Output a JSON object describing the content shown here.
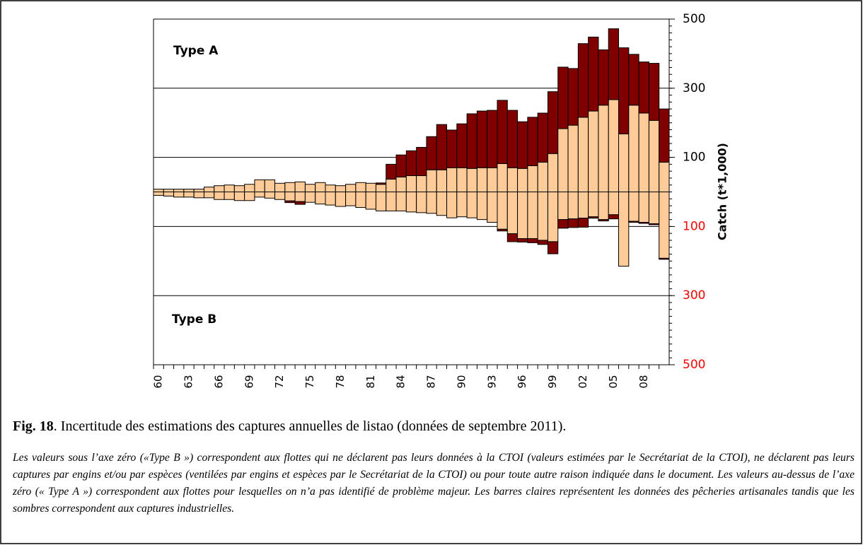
{
  "chart_data": {
    "type": "bar",
    "ylabel": "Catch (t*1,000)",
    "annotations": [
      "Type A",
      "Type B"
    ],
    "caption": {
      "label": "Fig. 18",
      "text": ". Incertitude des estimations des captures annuelles de listao (données de septembre 2011)."
    },
    "note": "Les valeurs sous l’axe zéro («Type B ») correspondent aux flottes qui ne déclarent pas leurs données à la CTOI (valeurs estimées par le Secrétariat de la CTOI), ne déclarent pas leurs captures par engins et/ou par espèces (ventilées par engins et espèces par le Secrétariat de la CTOI) ou pour toute autre raison indiquée dans le document. Les valeurs au-dessus de l’axe zéro (« Type A ») correspondent aux flottes pour lesquelles on n’a pas identifié de problème majeur. Les barres claires représentent les données des pêcheries artisanales tandis que les sombres correspondent aux captures industrielles.",
    "categories": [
      "60",
      null,
      null,
      "63",
      null,
      null,
      "66",
      null,
      null,
      "69",
      null,
      null,
      "72",
      null,
      null,
      "75",
      null,
      null,
      "78",
      null,
      null,
      "81",
      null,
      null,
      "84",
      null,
      null,
      "87",
      null,
      null,
      "90",
      null,
      null,
      "93",
      null,
      null,
      "96",
      null,
      null,
      "99",
      null,
      null,
      "02",
      null,
      null,
      "05",
      null,
      null,
      "08",
      null,
      null
    ],
    "series": [
      {
        "color": "#ffcc99",
        "values": [
          8,
          8,
          8,
          8,
          8,
          14,
          18,
          20,
          18,
          22,
          35,
          35,
          25,
          27,
          29,
          22,
          27,
          20,
          18,
          22,
          27,
          25,
          22,
          37,
          43,
          47,
          47,
          64,
          64,
          70,
          70,
          68,
          70,
          70,
          82,
          70,
          68,
          76,
          86,
          111,
          183,
          193,
          216,
          234,
          251,
          267,
          168,
          251,
          228,
          207,
          86
        ]
      },
      {
        "color": "#800000",
        "values": [
          0,
          0,
          0,
          0,
          0,
          0,
          0,
          0,
          0,
          0,
          0,
          0,
          0,
          0,
          0,
          0,
          0,
          0,
          0,
          0,
          0,
          0,
          4,
          43,
          64,
          72,
          82,
          96,
          131,
          109,
          127,
          158,
          164,
          166,
          183,
          166,
          135,
          140,
          142,
          179,
          178,
          164,
          213,
          214,
          160,
          205,
          249,
          147,
          148,
          165,
          154
        ]
      },
      {
        "color": "#ffcc99",
        "values": [
          -10,
          -12,
          -15,
          -15,
          -17,
          -17,
          -22,
          -22,
          -25,
          -25,
          -15,
          -18,
          -22,
          -26,
          -28,
          -30,
          -35,
          -38,
          -42,
          -40,
          -45,
          -50,
          -55,
          -55,
          -55,
          -58,
          -60,
          -62,
          -68,
          -75,
          -72,
          -75,
          -80,
          -88,
          -108,
          -121,
          -135,
          -135,
          -140,
          -144,
          -80,
          -78,
          -76,
          -72,
          -80,
          -66,
          -215,
          -85,
          -88,
          -92,
          -192
        ]
      },
      {
        "color": "#800000",
        "values": [
          0,
          0,
          0,
          0,
          0,
          0,
          0,
          0,
          0,
          0,
          0,
          0,
          0,
          -5,
          -8,
          0,
          0,
          0,
          0,
          0,
          0,
          0,
          0,
          0,
          0,
          0,
          0,
          0,
          0,
          0,
          0,
          0,
          0,
          0,
          -5,
          -23,
          -10,
          -12,
          -12,
          -35,
          -25,
          -25,
          -26,
          -4,
          -4,
          -12,
          0,
          -3,
          -3,
          -3,
          -3
        ]
      }
    ],
    "ylim": [
      -500,
      500
    ],
    "yticks": [
      {
        "value": -500,
        "label": "500"
      },
      {
        "value": -300,
        "label": "300"
      },
      {
        "value": -100,
        "label": "100"
      },
      100,
      300,
      500
    ],
    "lower_tick_color": "#ff0000",
    "grid": true
  }
}
